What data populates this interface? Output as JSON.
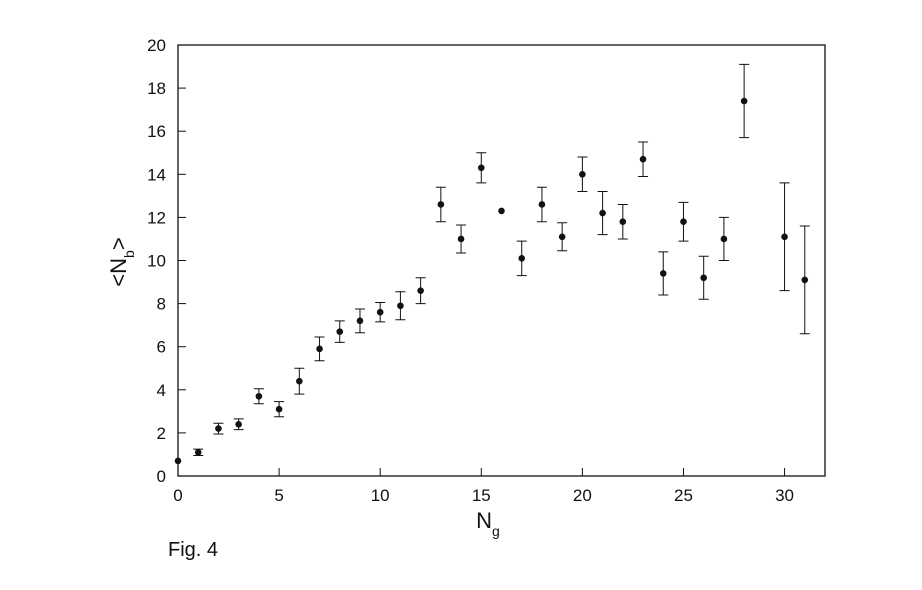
{
  "chart_data": {
    "type": "scatter",
    "x_label": {
      "main": "N",
      "sub": "g"
    },
    "y_label": {
      "open": "<N",
      "sub": "b",
      "close": ">"
    },
    "caption": "Fig. 4",
    "x": [
      0,
      1,
      2,
      3,
      4,
      5,
      6,
      7,
      8,
      9,
      10,
      11,
      12,
      13,
      14,
      15,
      16,
      17,
      18,
      19,
      20,
      21,
      22,
      23,
      24,
      25,
      26,
      27,
      28,
      30,
      31
    ],
    "values": [
      0.7,
      1.1,
      2.2,
      2.4,
      3.7,
      3.1,
      4.4,
      5.9,
      6.7,
      7.2,
      7.6,
      7.9,
      8.6,
      12.6,
      11.0,
      14.3,
      12.3,
      10.1,
      12.6,
      11.1,
      14.0,
      12.2,
      11.8,
      14.7,
      9.4,
      11.8,
      9.2,
      11.0,
      17.4,
      11.1,
      9.1
    ],
    "errors": [
      0,
      0.15,
      0.25,
      0.25,
      0.35,
      0.35,
      0.6,
      0.55,
      0.5,
      0.55,
      0.45,
      0.65,
      0.6,
      0.8,
      0.65,
      0.7,
      0,
      0.8,
      0.8,
      0.65,
      0.8,
      1.0,
      0.8,
      0.8,
      1.0,
      0.9,
      1.0,
      1.0,
      1.7,
      2.5,
      2.5
    ],
    "color": "#111111",
    "xlim": [
      0,
      32
    ],
    "xticks": [
      0,
      5,
      10,
      15,
      20,
      25,
      30
    ],
    "ylim": [
      0,
      20
    ],
    "yticks": [
      0,
      2,
      4,
      6,
      8,
      10,
      12,
      14,
      16,
      18,
      20
    ]
  }
}
